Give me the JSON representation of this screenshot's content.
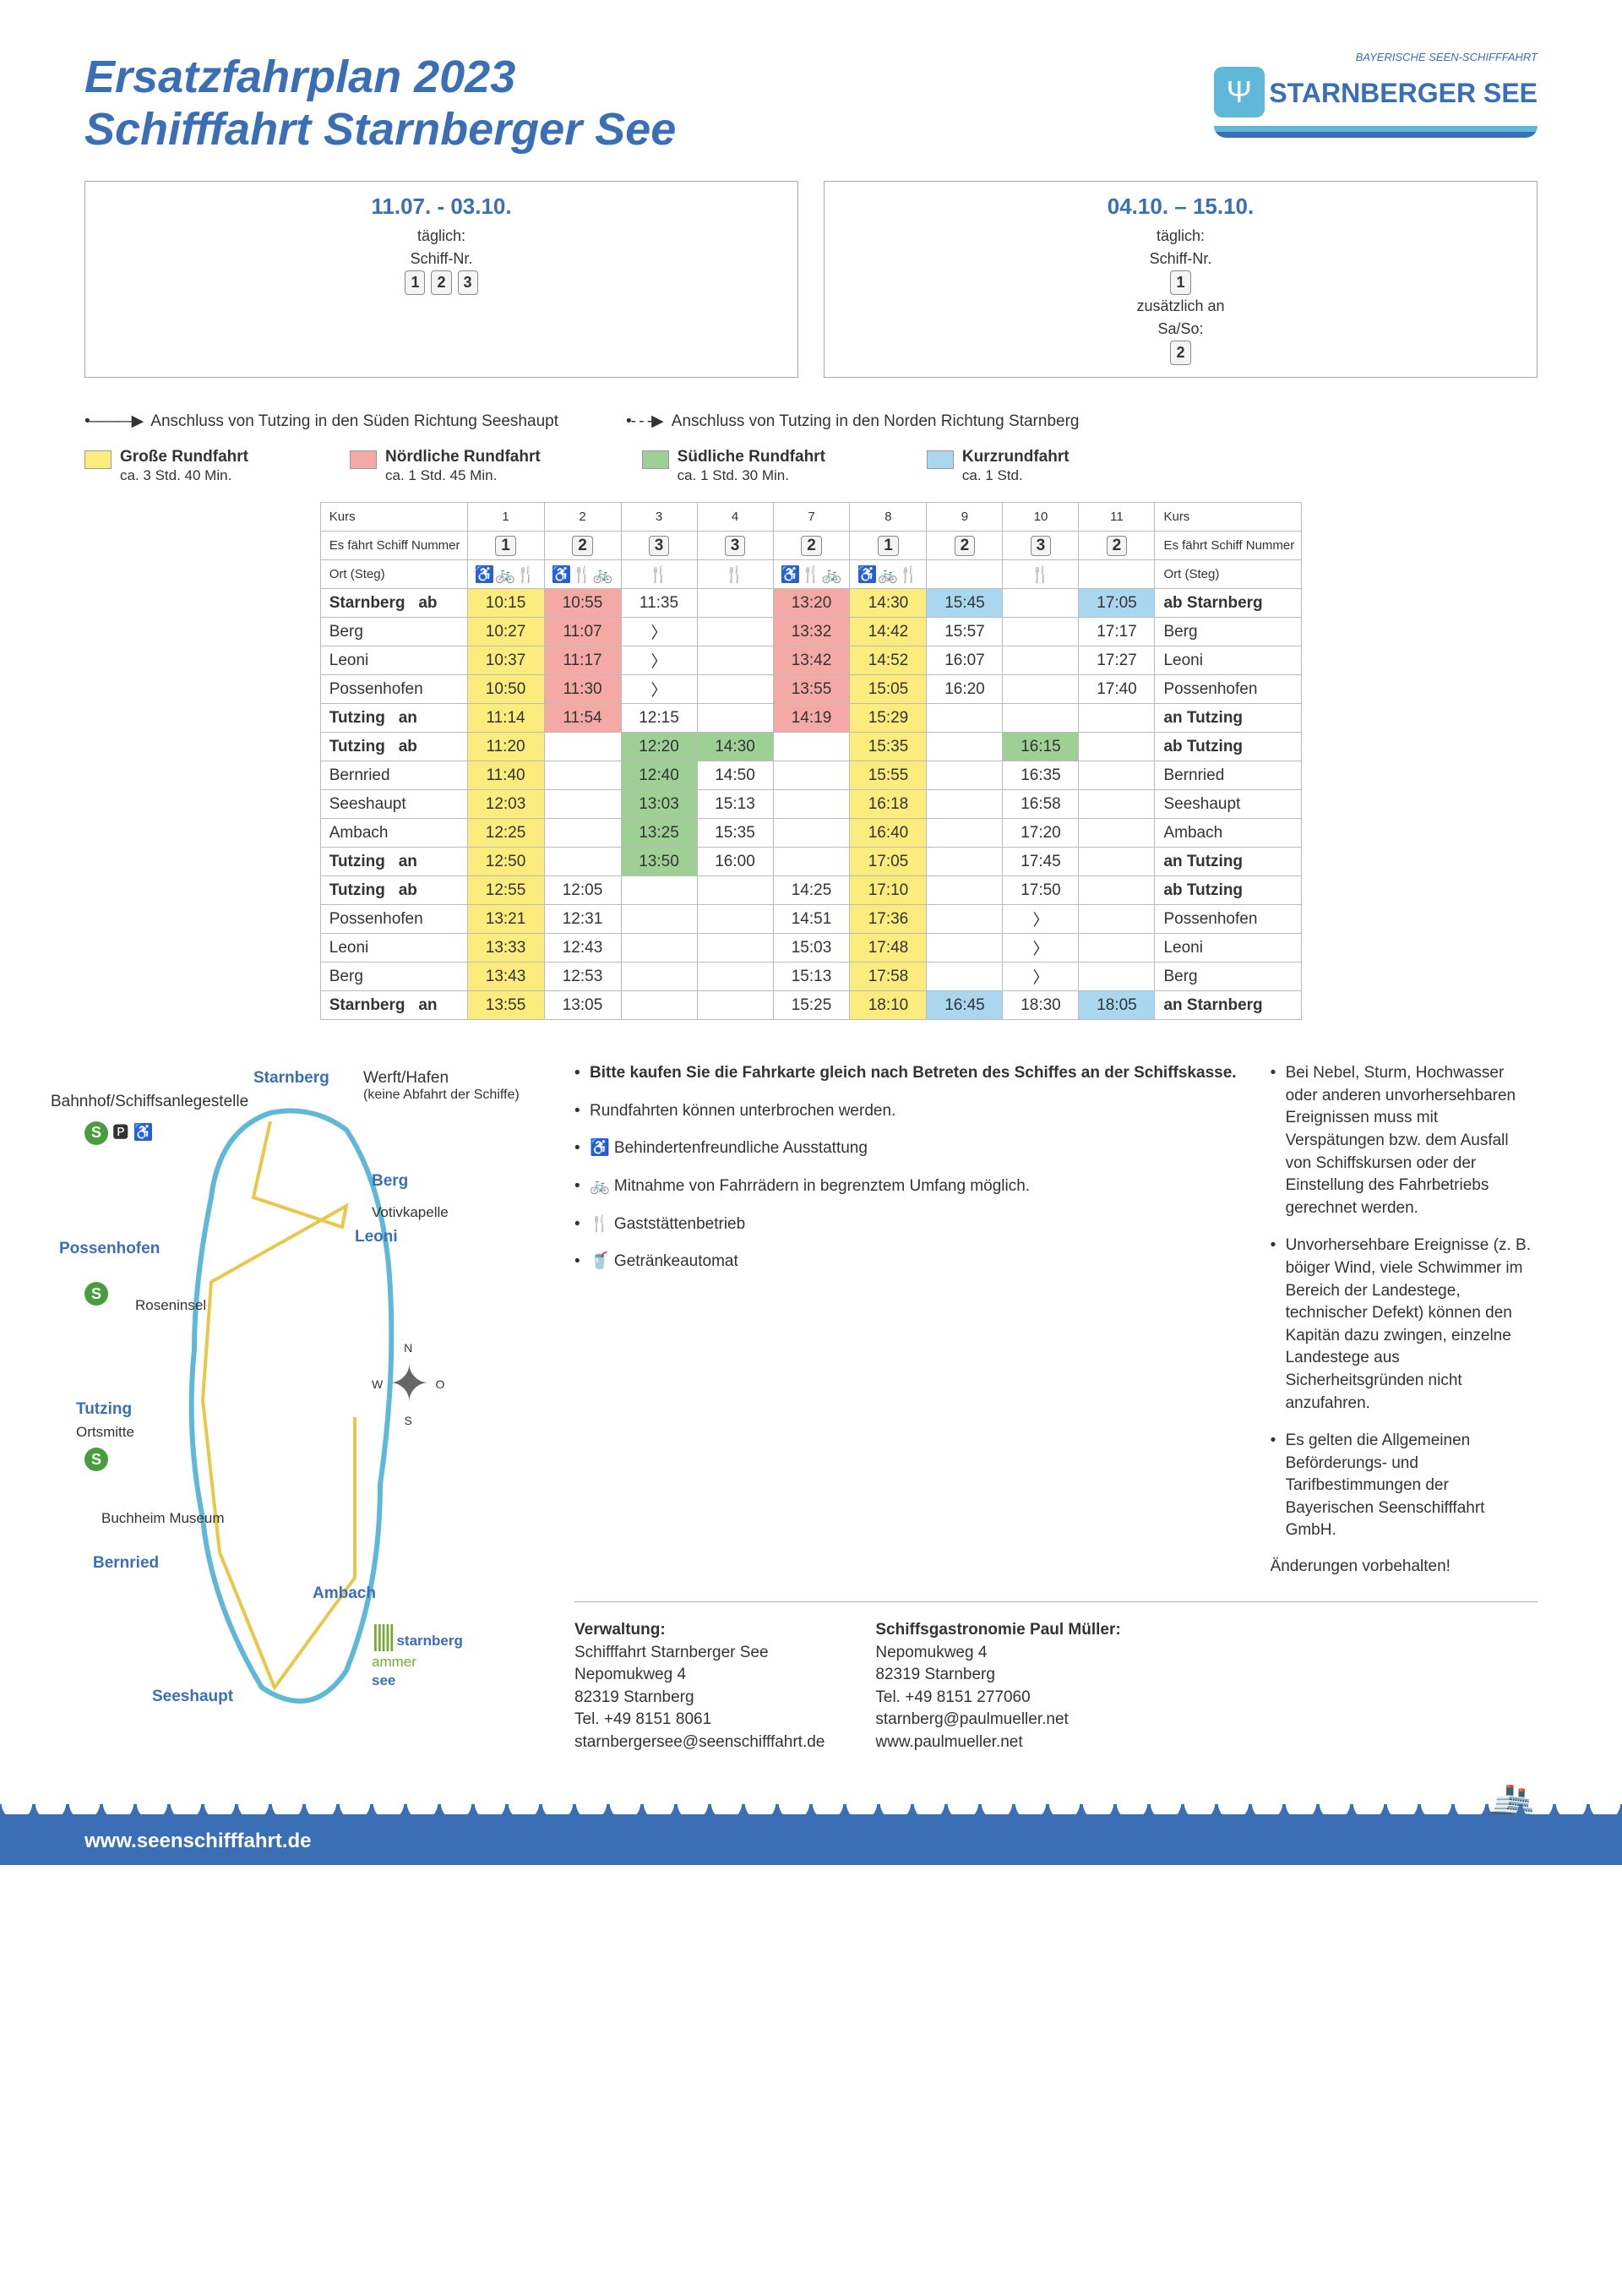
{
  "header": {
    "title_line1": "Ersatzfahrplan 2023",
    "title_line2": "Schifffahrt Starnberger See",
    "brand_sub": "BAYERISCHE SEEN-SCHIFFFAHRT",
    "brand_main": "STARNBERGER SEE"
  },
  "periods": [
    {
      "dates": "11.07. - 03.10.",
      "freq": "täglich:",
      "ship_label": "Schiff-Nr.",
      "ships": "1 2 3",
      "extra": ""
    },
    {
      "dates": "04.10. – 15.10.",
      "freq": "täglich:",
      "ship_label": "Schiff-Nr.",
      "ships": "1",
      "extra_label": "zusätzlich an",
      "extra_days": "Sa/So:",
      "extra_ship": "2"
    }
  ],
  "arrows": {
    "south": "Anschluss von Tutzing in den Süden Richtung Seeshaupt",
    "north": "Anschluss von Tutzing in den Norden Richtung Starnberg"
  },
  "tours": [
    {
      "name": "Große Rundfahrt",
      "dur": "ca. 3 Std. 40 Min.",
      "color": "sw-yellow"
    },
    {
      "name": "Nördliche Rundfahrt",
      "dur": "ca. 1 Std. 45 Min.",
      "color": "sw-pink"
    },
    {
      "name": "Südliche Rundfahrt",
      "dur": "ca. 1 Std. 30 Min.",
      "color": "sw-green"
    },
    {
      "name": "Kurzrundfahrt",
      "dur": "ca. 1 Std.",
      "color": "sw-blue"
    }
  ],
  "table": {
    "kurs_label": "Kurs",
    "ship_row_label": "Es fährt Schiff Nummer",
    "kurs_nums": [
      "1",
      "2",
      "3",
      "4",
      "7",
      "8",
      "9",
      "10",
      "11"
    ],
    "ship_nums": [
      "1",
      "2",
      "3",
      "3",
      "2",
      "1",
      "2",
      "3",
      "2"
    ],
    "ort_label": "Ort (Steg)",
    "icons": [
      "♿🚲🍴",
      "♿🍴🚲",
      "🍴",
      "🍴",
      "♿🍴🚲",
      "♿🚲🍴",
      "",
      "🍴",
      ""
    ],
    "block1": [
      {
        "ort": "Starnberg",
        "suf": "ab",
        "bold": true,
        "cells": [
          [
            "10:15",
            "c-y"
          ],
          [
            "10:55",
            "c-p"
          ],
          [
            "11:35",
            ""
          ],
          [
            "",
            ""
          ],
          [
            "13:20",
            "c-p"
          ],
          [
            "14:30",
            "c-y"
          ],
          [
            "15:45",
            "c-b"
          ],
          [
            "",
            ""
          ],
          [
            "17:05",
            "c-b"
          ]
        ],
        "ort_r": "ab  Starnberg"
      },
      {
        "ort": "Berg",
        "suf": "",
        "cells": [
          [
            "10:27",
            "c-y"
          ],
          [
            "11:07",
            "c-p"
          ],
          [
            "〉",
            ""
          ],
          [
            "",
            ""
          ],
          [
            "13:32",
            "c-p"
          ],
          [
            "14:42",
            "c-y"
          ],
          [
            "15:57",
            ""
          ],
          [
            "",
            ""
          ],
          [
            "17:17",
            ""
          ]
        ],
        "ort_r": "Berg"
      },
      {
        "ort": "Leoni",
        "suf": "",
        "cells": [
          [
            "10:37",
            "c-y"
          ],
          [
            "11:17",
            "c-p"
          ],
          [
            "〉",
            ""
          ],
          [
            "",
            ""
          ],
          [
            "13:42",
            "c-p"
          ],
          [
            "14:52",
            "c-y"
          ],
          [
            "16:07",
            ""
          ],
          [
            "",
            ""
          ],
          [
            "17:27",
            ""
          ]
        ],
        "ort_r": "Leoni"
      },
      {
        "ort": "Possenhofen",
        "suf": "",
        "cells": [
          [
            "10:50",
            "c-y"
          ],
          [
            "11:30",
            "c-p"
          ],
          [
            "〉",
            ""
          ],
          [
            "",
            ""
          ],
          [
            "13:55",
            "c-p"
          ],
          [
            "15:05",
            "c-y"
          ],
          [
            "16:20",
            ""
          ],
          [
            "",
            ""
          ],
          [
            "17:40",
            ""
          ]
        ],
        "ort_r": "Possenhofen"
      },
      {
        "ort": "Tutzing",
        "suf": "an",
        "bold": true,
        "cells": [
          [
            "11:14",
            "c-y"
          ],
          [
            "11:54",
            "c-p"
          ],
          [
            "12:15",
            ""
          ],
          [
            "",
            ""
          ],
          [
            "14:19",
            "c-p"
          ],
          [
            "15:29",
            "c-y"
          ],
          [
            "",
            ""
          ],
          [
            "",
            ""
          ],
          [
            "",
            ""
          ]
        ],
        "ort_r": "an  Tutzing"
      }
    ],
    "block2": [
      {
        "ort": "Tutzing",
        "suf": "ab",
        "bold": true,
        "cells": [
          [
            "11:20",
            "c-y"
          ],
          [
            "",
            ""
          ],
          [
            "12:20",
            "c-g"
          ],
          [
            "14:30",
            "c-g"
          ],
          [
            "",
            ""
          ],
          [
            "15:35",
            "c-y"
          ],
          [
            "",
            ""
          ],
          [
            "16:15",
            "c-g"
          ],
          [
            "",
            ""
          ]
        ],
        "ort_r": "ab  Tutzing"
      },
      {
        "ort": "Bernried",
        "suf": "",
        "cells": [
          [
            "11:40",
            "c-y"
          ],
          [
            "",
            ""
          ],
          [
            "12:40",
            "c-g"
          ],
          [
            "14:50",
            ""
          ],
          [
            "",
            ""
          ],
          [
            "15:55",
            "c-y"
          ],
          [
            "",
            ""
          ],
          [
            "16:35",
            ""
          ],
          [
            "",
            ""
          ]
        ],
        "ort_r": "Bernried"
      },
      {
        "ort": "Seeshaupt",
        "suf": "",
        "cells": [
          [
            "12:03",
            "c-y"
          ],
          [
            "",
            ""
          ],
          [
            "13:03",
            "c-g"
          ],
          [
            "15:13",
            ""
          ],
          [
            "",
            ""
          ],
          [
            "16:18",
            "c-y"
          ],
          [
            "",
            ""
          ],
          [
            "16:58",
            ""
          ],
          [
            "",
            ""
          ]
        ],
        "ort_r": "Seeshaupt"
      },
      {
        "ort": "Ambach",
        "suf": "",
        "cells": [
          [
            "12:25",
            "c-y"
          ],
          [
            "",
            ""
          ],
          [
            "13:25",
            "c-g"
          ],
          [
            "15:35",
            ""
          ],
          [
            "",
            ""
          ],
          [
            "16:40",
            "c-y"
          ],
          [
            "",
            ""
          ],
          [
            "17:20",
            ""
          ],
          [
            "",
            ""
          ]
        ],
        "ort_r": "Ambach"
      },
      {
        "ort": "Tutzing",
        "suf": "an",
        "bold": true,
        "cells": [
          [
            "12:50",
            "c-y"
          ],
          [
            "",
            ""
          ],
          [
            "13:50",
            "c-g"
          ],
          [
            "16:00",
            ""
          ],
          [
            "",
            ""
          ],
          [
            "17:05",
            "c-y"
          ],
          [
            "",
            ""
          ],
          [
            "17:45",
            ""
          ],
          [
            "",
            ""
          ]
        ],
        "ort_r": "an  Tutzing"
      }
    ],
    "block3": [
      {
        "ort": "Tutzing",
        "suf": "ab",
        "bold": true,
        "cells": [
          [
            "12:55",
            "c-y"
          ],
          [
            "12:05",
            ""
          ],
          [
            "",
            ""
          ],
          [
            "",
            ""
          ],
          [
            "14:25",
            ""
          ],
          [
            "17:10",
            "c-y"
          ],
          [
            "",
            ""
          ],
          [
            "17:50",
            ""
          ],
          [
            "",
            ""
          ]
        ],
        "ort_r": "ab  Tutzing"
      },
      {
        "ort": "Possenhofen",
        "suf": "",
        "cells": [
          [
            "13:21",
            "c-y"
          ],
          [
            "12:31",
            ""
          ],
          [
            "",
            ""
          ],
          [
            "",
            ""
          ],
          [
            "14:51",
            ""
          ],
          [
            "17:36",
            "c-y"
          ],
          [
            "",
            ""
          ],
          [
            "〉",
            ""
          ],
          [
            "",
            ""
          ]
        ],
        "ort_r": "Possenhofen"
      },
      {
        "ort": "Leoni",
        "suf": "",
        "cells": [
          [
            "13:33",
            "c-y"
          ],
          [
            "12:43",
            ""
          ],
          [
            "",
            ""
          ],
          [
            "",
            ""
          ],
          [
            "15:03",
            ""
          ],
          [
            "17:48",
            "c-y"
          ],
          [
            "",
            ""
          ],
          [
            "〉",
            ""
          ],
          [
            "",
            ""
          ]
        ],
        "ort_r": "Leoni"
      },
      {
        "ort": "Berg",
        "suf": "",
        "cells": [
          [
            "13:43",
            "c-y"
          ],
          [
            "12:53",
            ""
          ],
          [
            "",
            ""
          ],
          [
            "",
            ""
          ],
          [
            "15:13",
            ""
          ],
          [
            "17:58",
            "c-y"
          ],
          [
            "",
            ""
          ],
          [
            "〉",
            ""
          ],
          [
            "",
            ""
          ]
        ],
        "ort_r": "Berg"
      },
      {
        "ort": "Starnberg",
        "suf": "an",
        "bold": true,
        "cells": [
          [
            "13:55",
            "c-y"
          ],
          [
            "13:05",
            ""
          ],
          [
            "",
            ""
          ],
          [
            "",
            ""
          ],
          [
            "15:25",
            ""
          ],
          [
            "18:10",
            "c-y"
          ],
          [
            "16:45",
            "c-b"
          ],
          [
            "18:30",
            ""
          ],
          [
            "18:05",
            "c-b"
          ]
        ],
        "ort_r": "an  Starnberg"
      }
    ]
  },
  "map_stops": {
    "starnberg": "Starnberg",
    "werft": "Werft/Hafen",
    "werft_sub": "(keine Abfahrt der Schiffe)",
    "bahnhof": "Bahnhof/Schiffsanlegestelle",
    "berg": "Berg",
    "votiv": "Votivkapelle",
    "leoni": "Leoni",
    "possen": "Possenhofen",
    "rosen": "Roseninsel",
    "tutzing": "Tutzing",
    "ortsmitte": "Ortsmitte",
    "buchheim": "Buchheim Museum",
    "bernried": "Bernried",
    "ambach": "Ambach",
    "seeshaupt": "Seeshaupt"
  },
  "compass": {
    "n": "N",
    "s": "S",
    "e": "O",
    "w": "W"
  },
  "notes_left": [
    {
      "text": "Bitte kaufen Sie die Fahrkarte gleich nach Betreten des Schiffes an der Schiffskasse.",
      "bold": true
    },
    {
      "text": "Rundfahrten können unterbrochen werden."
    },
    {
      "text": "♿ Behindertenfreundliche Ausstattung"
    },
    {
      "text": "🚲 Mitnahme von Fahrrädern in begrenztem Umfang möglich."
    },
    {
      "text": "🍴 Gaststättenbetrieb"
    },
    {
      "text": "🥤 Getränkeautomat"
    }
  ],
  "notes_right": [
    {
      "text": "Bei Nebel, Sturm, Hochwasser oder anderen unvorhersehbaren Ereignissen muss mit Verspätungen bzw. dem Ausfall von Schiffskursen oder der Einstellung des Fahrbetriebs gerechnet werden."
    },
    {
      "text": "Unvorhersehbare Ereignisse (z. B. böiger Wind, viele Schwimmer im Bereich der Landestege, technischer Defekt) können den Kapitän dazu zwingen, einzelne Landestege aus Sicherheitsgründen nicht anzufahren."
    },
    {
      "text": "Es gelten die Allgemeinen Beförderungs- und Tarifbestimmungen der Bayerischen Seenschifffahrt GmbH."
    }
  ],
  "changes_note": "Änderungen vorbehalten!",
  "contact1": {
    "title": "Verwaltung:",
    "l1": "Schifffahrt Starnberger See",
    "l2": "Nepomukweg 4",
    "l3": "82319 Starnberg",
    "l4": "Tel. +49 8151 8061",
    "l5": "starnbergersee@seenschifffahrt.de"
  },
  "contact2": {
    "title": "Schiffsgastronomie Paul Müller:",
    "l1": "Nepomukweg 4",
    "l2": "82319 Starnberg",
    "l3": "Tel. +49 8151 277060",
    "l4": "starnberg@paulmueller.net",
    "l5": "www.paulmueller.net"
  },
  "ammer": {
    "l1": "starnberg",
    "l2": "ammer",
    "l3": "see"
  },
  "footer_url": "www.seenschifffahrt.de"
}
